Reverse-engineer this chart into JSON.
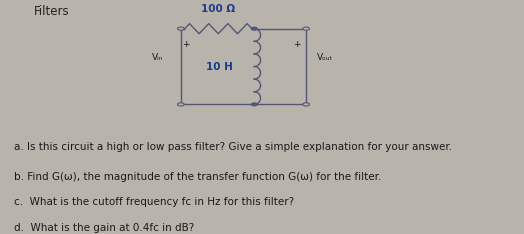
{
  "background_color": "#b8b4ac",
  "text_color": "#1a1a1a",
  "title": "Filters",
  "title_color": "#222222",
  "circuit": {
    "resistor_label": "100 Ω",
    "resistor_label_color": "#1a3a8a",
    "inductor_label": "10 H",
    "inductor_label_color": "#1a3a8a",
    "vin_label": "Vᵢₙ",
    "vout_label": "Vₒᵤₜ",
    "wire_color": "#555577",
    "node_color": "#555577"
  },
  "questions": [
    "a. Is this circuit a high or low pass filter? Give a simple explanation for your answer.",
    "b. Find G(ω), the magnitude of the transfer function G(ω) for the filter.",
    "c.  What is the cutoff frequency fᴄ in Hz for this filter?",
    "d.  What is the gain at 0.4fᴄ in dB?"
  ],
  "q_fontsize": 7.5,
  "title_fontsize": 8.5,
  "circuit_fontsize": 7.5
}
